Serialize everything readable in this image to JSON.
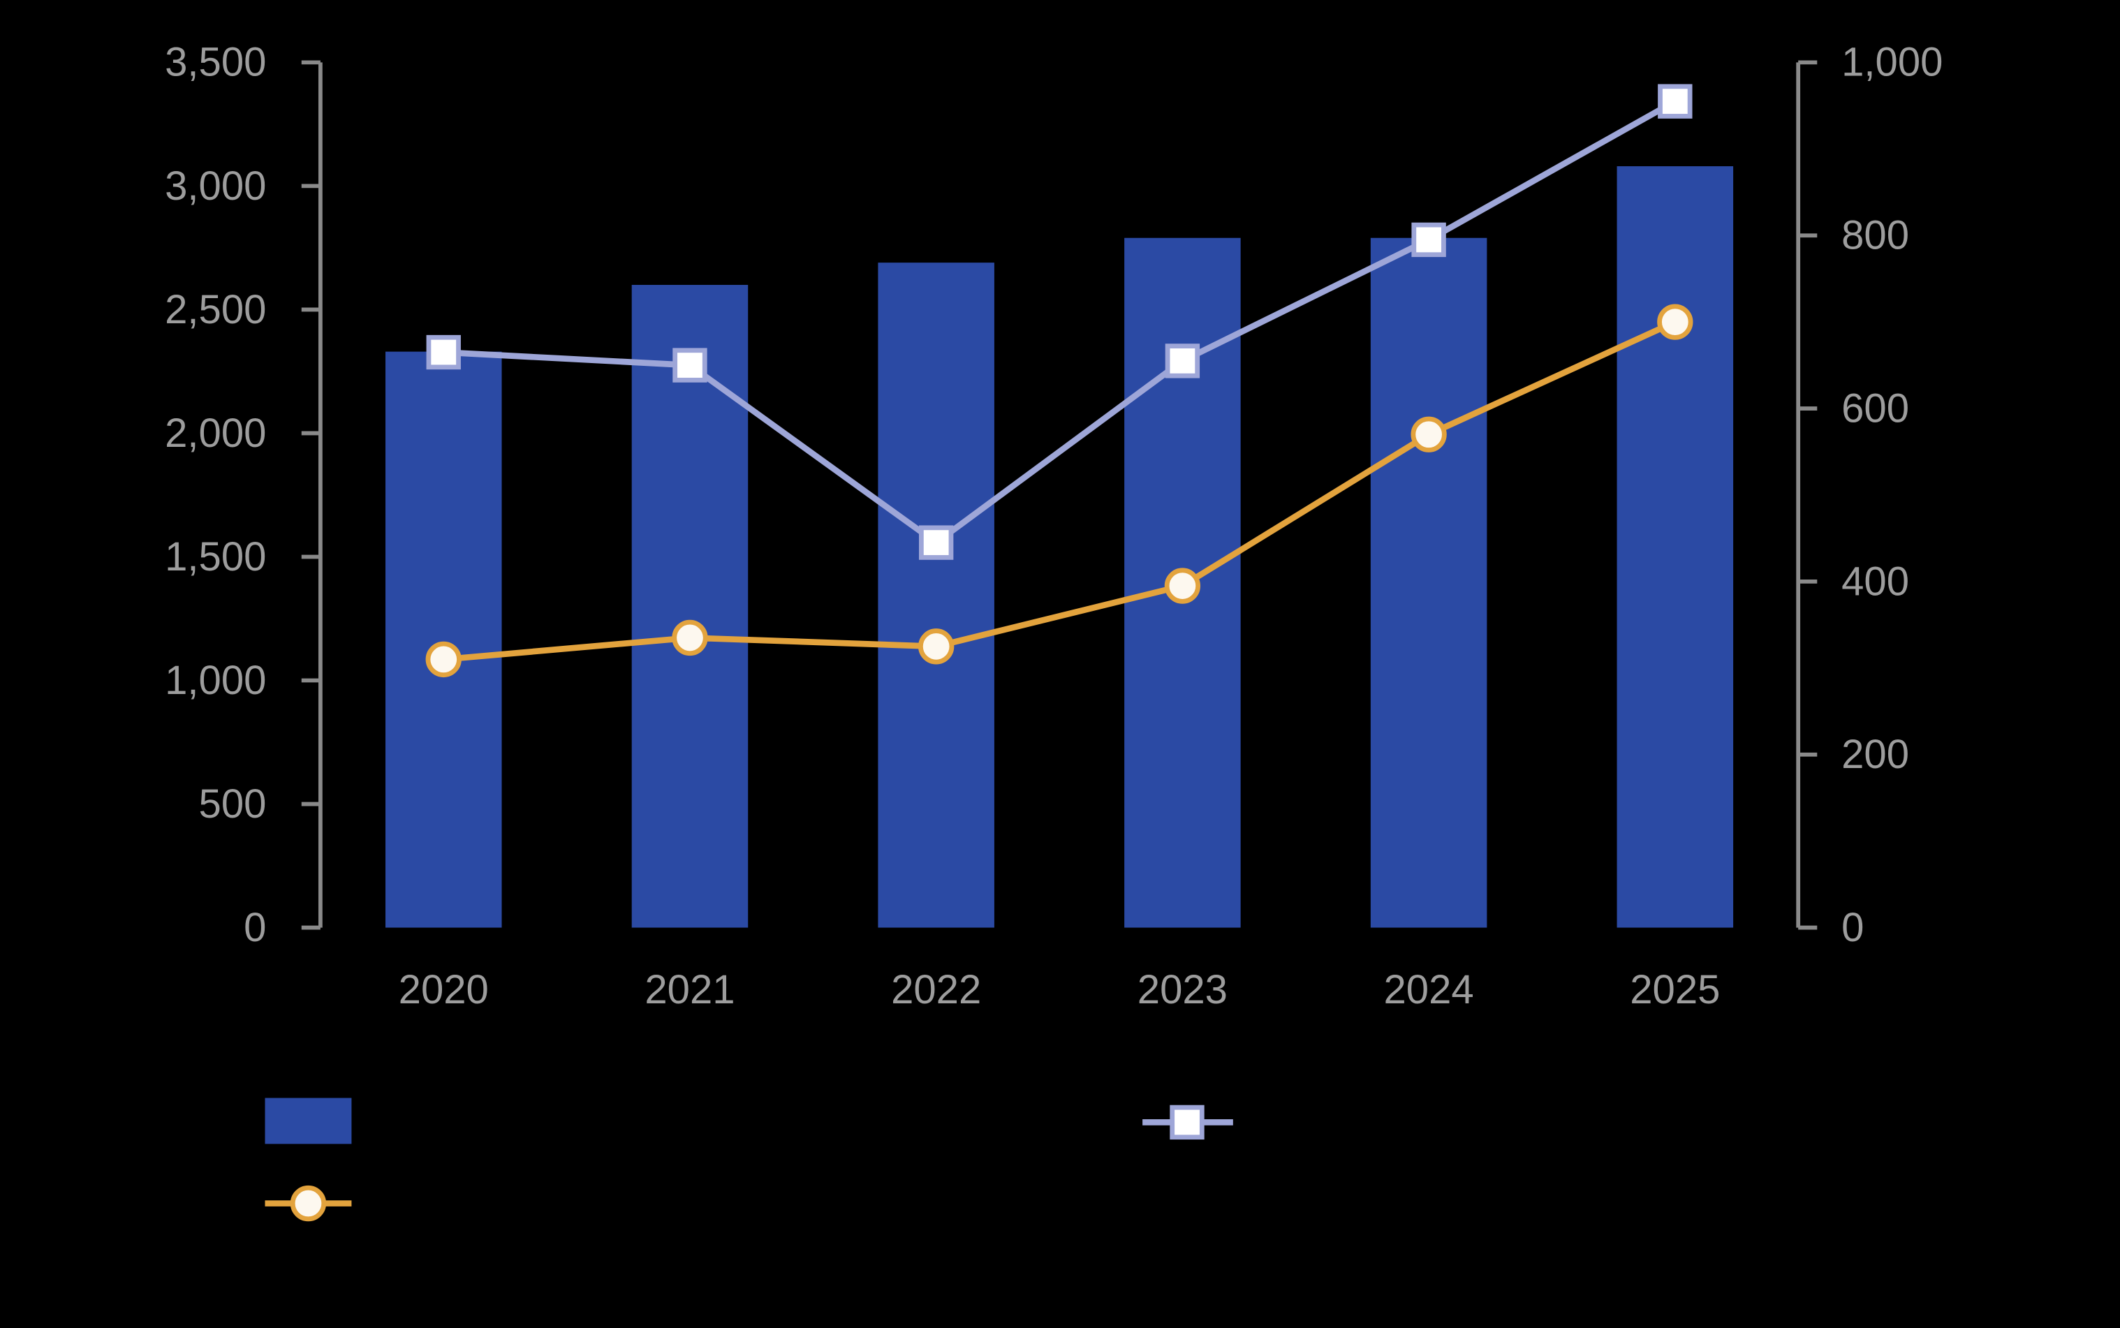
{
  "background": "#000000",
  "chart_data": {
    "type": "combo-bar-line",
    "title": "",
    "categories": [
      "2020",
      "2021",
      "2022",
      "2023",
      "2024",
      "2025"
    ],
    "series": [
      {
        "id": "bar-series",
        "type": "bar",
        "axis": "left",
        "color": "#2b4aa4",
        "values": [
          2330,
          2600,
          2690,
          2790,
          2790,
          3080
        ]
      },
      {
        "id": "line-series-squares",
        "type": "line",
        "axis": "right",
        "color": "#9ea6d8",
        "marker": "square",
        "marker_fill": "#ffffff",
        "values": [
          665,
          650,
          445,
          655,
          795,
          955
        ]
      },
      {
        "id": "line-series-circles",
        "type": "line",
        "axis": "right",
        "color": "#e3a33d",
        "marker": "circle",
        "marker_fill": "#fdf8ef",
        "values": [
          310,
          335,
          325,
          395,
          570,
          700
        ]
      }
    ],
    "left_axis": {
      "min": 0,
      "max": 3500,
      "step": 500,
      "tick_labels": [
        "0",
        "500",
        "1,000",
        "1,500",
        "2,000",
        "2,500",
        "3,000",
        "3,500"
      ]
    },
    "right_axis": {
      "min": 0,
      "max": 1000,
      "step": 200,
      "tick_labels": [
        "0",
        "200",
        "400",
        "600",
        "800",
        "1,000"
      ]
    },
    "x_axis": {
      "tick_labels": [
        "2020",
        "2021",
        "2022",
        "2023",
        "2024",
        "2025"
      ]
    },
    "grid": false,
    "legend": {
      "position": "bottom",
      "items": [
        {
          "series": "bar-series",
          "swatch": "rect",
          "color": "#2b4aa4",
          "label": ""
        },
        {
          "series": "line-series-squares",
          "swatch": "line-square",
          "color": "#9ea6d8",
          "label": ""
        },
        {
          "series": "line-series-circles",
          "swatch": "line-circle",
          "color": "#e3a33d",
          "label": ""
        }
      ]
    },
    "axis_color": "#8a8a8a",
    "label_color": "#9d9d9d"
  }
}
